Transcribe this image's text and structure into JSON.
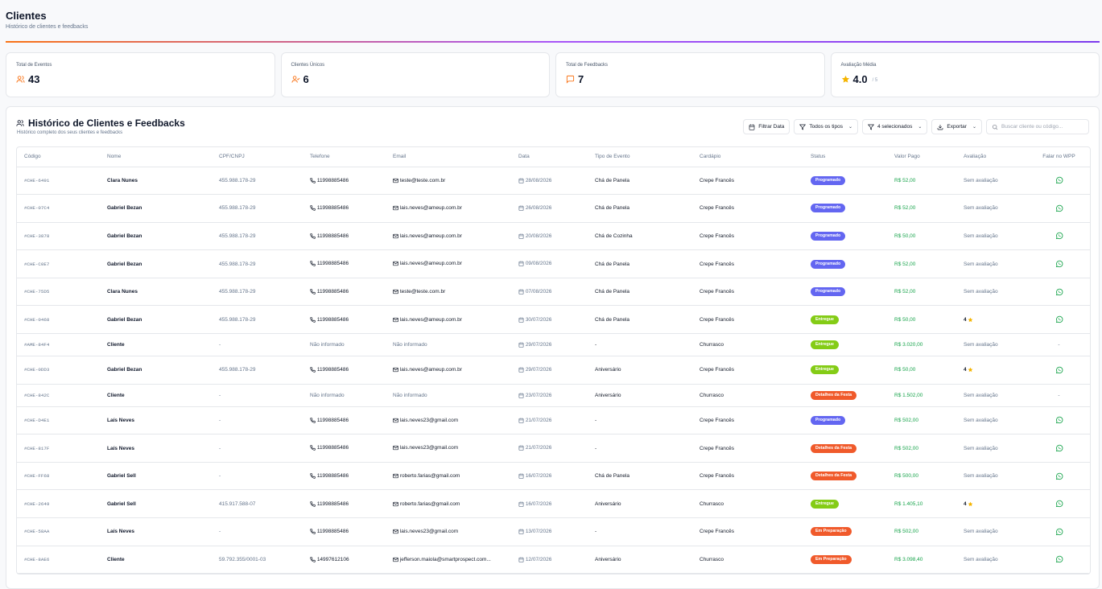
{
  "header": {
    "title": "Clientes",
    "subtitle": "Histórico de clientes e feedbacks"
  },
  "stats": [
    {
      "label": "Total de Eventos",
      "value": "43",
      "icon": "users-icon",
      "suffix": ""
    },
    {
      "label": "Clientes Únicos",
      "value": "6",
      "icon": "user-check-icon",
      "suffix": ""
    },
    {
      "label": "Total de Feedbacks",
      "value": "7",
      "icon": "message-square-icon",
      "suffix": ""
    },
    {
      "label": "Avaliação Média",
      "value": "4.0",
      "icon": "star-icon",
      "suffix": "/ 5"
    }
  ],
  "panel": {
    "title": "Histórico de Clientes e Feedbacks",
    "subtitle": "Histórico completo dos seus clientes e feedbacks",
    "filter_date": "Filtrar Data",
    "types": "Todos os tipos",
    "selected": "4 selecionados",
    "export": "Exportar",
    "search_placeholder": "Buscar cliente ou código..."
  },
  "colors": {
    "accent": "#f97316",
    "Programado": "#6366f1",
    "Entregue": "#84cc16",
    "Detalhes da Festa": "#f05a2b",
    "Em Preparação": "#f05a2b",
    "whatsapp": "#16a34a",
    "star": "#f5b400"
  },
  "table": {
    "columns": [
      "Código",
      "Nome",
      "CPF/CNPJ",
      "Telefone",
      "Email",
      "Data",
      "Tipo de Evento",
      "Cardápio",
      "Status",
      "Valor Pago",
      "Avaliação",
      "Falar no WPP"
    ],
    "rows": [
      {
        "code": "#CHE-6491",
        "name": "Clara Nunes",
        "cpf": "455.988.178-29",
        "phone": "11998885486",
        "email": "teste@teste.com.br",
        "date": "28/08/2026",
        "type": "Chá de Panela",
        "menu": "Crepe Francês",
        "status": "Programado",
        "paid": "R$ 52,00",
        "rating": "Sem avaliação",
        "wpp": true
      },
      {
        "code": "#CHE-07C4",
        "name": "Gabriel Bezan",
        "cpf": "455.988.178-29",
        "phone": "11998885486",
        "email": "lais.neves@ameup.com.br",
        "date": "26/08/2026",
        "type": "Chá de Panela",
        "menu": "Crepe Francês",
        "status": "Programado",
        "paid": "R$ 52,00",
        "rating": "Sem avaliação",
        "wpp": true
      },
      {
        "code": "#CHE-3878",
        "name": "Gabriel Bezan",
        "cpf": "455.988.178-29",
        "phone": "11998885486",
        "email": "lais.neves@ameup.com.br",
        "date": "20/08/2026",
        "type": "Chá de Cozinha",
        "menu": "Crepe Francês",
        "status": "Programado",
        "paid": "R$ 50,00",
        "rating": "Sem avaliação",
        "wpp": true
      },
      {
        "code": "#CHE-C0E7",
        "name": "Gabriel Bezan",
        "cpf": "455.988.178-29",
        "phone": "11998885486",
        "email": "lais.neves@ameup.com.br",
        "date": "09/08/2026",
        "type": "Chá de Panela",
        "menu": "Crepe Francês",
        "status": "Programado",
        "paid": "R$ 52,00",
        "rating": "Sem avaliação",
        "wpp": true
      },
      {
        "code": "#CHE-75D5",
        "name": "Clara Nunes",
        "cpf": "455.988.178-29",
        "phone": "11998885486",
        "email": "teste@teste.com.br",
        "date": "07/08/2026",
        "type": "Chá de Panela",
        "menu": "Crepe Francês",
        "status": "Programado",
        "paid": "R$ 52,00",
        "rating": "Sem avaliação",
        "wpp": true
      },
      {
        "code": "#CHE-0468",
        "name": "Gabriel Bezan",
        "cpf": "455.988.178-29",
        "phone": "11998885486",
        "email": "lais.neves@ameup.com.br",
        "date": "30/07/2026",
        "type": "Chá de Panela",
        "menu": "Crepe Francês",
        "status": "Entregue",
        "paid": "R$ 50,00",
        "rating": "4",
        "wpp": true
      },
      {
        "code": "#AME-84F4",
        "name": "Cliente",
        "cpf": "-",
        "phone": "Não informado",
        "email": "Não informado",
        "date": "29/07/2026",
        "type": "-",
        "menu": "Churrasco",
        "status": "Entregue",
        "paid": "R$ 3.020,00",
        "rating": "Sem avaliação",
        "wpp": false
      },
      {
        "code": "#CHE-0DD3",
        "name": "Gabriel Bezan",
        "cpf": "455.988.178-29",
        "phone": "11998885486",
        "email": "lais.neves@ameup.com.br",
        "date": "29/07/2026",
        "type": "Aniversário",
        "menu": "Crepe Francês",
        "status": "Entregue",
        "paid": "R$ 50,00",
        "rating": "4",
        "wpp": true
      },
      {
        "code": "#CHE-842C",
        "name": "Cliente",
        "cpf": "-",
        "phone": "Não informado",
        "email": "Não informado",
        "date": "23/07/2026",
        "type": "Aniversário",
        "menu": "Churrasco",
        "status": "Detalhes da Festa",
        "paid": "R$ 1.502,00",
        "rating": "Sem avaliação",
        "wpp": false
      },
      {
        "code": "#CHE-D4E1",
        "name": "Laís Neves",
        "cpf": "-",
        "phone": "11998885486",
        "email": "lais.neves23@gmail.com",
        "date": "21/07/2026",
        "type": "-",
        "menu": "Crepe Francês",
        "status": "Programado",
        "paid": "R$ 502,00",
        "rating": "Sem avaliação",
        "wpp": true
      },
      {
        "code": "#CHE-817F",
        "name": "Laís Neves",
        "cpf": "-",
        "phone": "11998885486",
        "email": "lais.neves23@gmail.com",
        "date": "21/07/2026",
        "type": "-",
        "menu": "Crepe Francês",
        "status": "Detalhes da Festa",
        "paid": "R$ 502,00",
        "rating": "Sem avaliação",
        "wpp": true
      },
      {
        "code": "#CHE-FF68",
        "name": "Gabriel Sell",
        "cpf": "-",
        "phone": "11998885486",
        "email": "roberto.farias@gmail.com",
        "date": "16/07/2026",
        "type": "Chá de Panela",
        "menu": "Crepe Francês",
        "status": "Detalhes da Festa",
        "paid": "R$ 500,00",
        "rating": "Sem avaliação",
        "wpp": true
      },
      {
        "code": "#CHE-2649",
        "name": "Gabriel Sell",
        "cpf": "415.917.588-07",
        "phone": "11998885486",
        "email": "roberto.farias@gmail.com",
        "date": "16/07/2026",
        "type": "Aniversário",
        "menu": "Churrasco",
        "status": "Entregue",
        "paid": "R$ 1.405,10",
        "rating": "4",
        "wpp": true
      },
      {
        "code": "#CHE-58AA",
        "name": "Laís Neves",
        "cpf": "-",
        "phone": "11998885486",
        "email": "lais.neves23@gmail.com",
        "date": "13/07/2026",
        "type": "-",
        "menu": "Crepe Francês",
        "status": "Em Preparação",
        "paid": "R$ 502,00",
        "rating": "Sem avaliação",
        "wpp": true
      },
      {
        "code": "#CHE-8AE6",
        "name": "Cliente",
        "cpf": "59.792.355/0001-03",
        "phone": "14997612106",
        "email": "jefferson.maiola@smartprospect.com...",
        "date": "12/07/2026",
        "type": "Aniversário",
        "menu": "Churrasco",
        "status": "Em Preparação",
        "paid": "R$ 3.098,40",
        "rating": "Sem avaliação",
        "wpp": true
      }
    ]
  }
}
